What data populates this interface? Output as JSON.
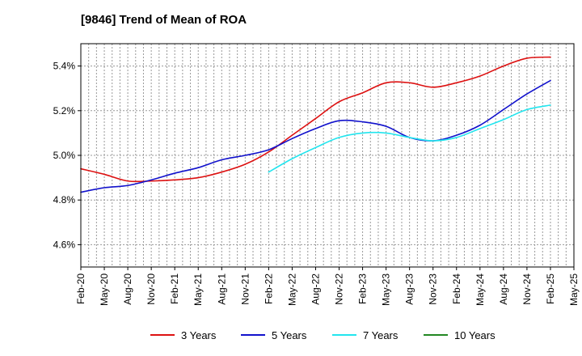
{
  "chart_data": {
    "type": "line",
    "title": "[9846]  Trend of Mean of ROA",
    "xlabel": "",
    "ylabel": "",
    "ylim": [
      4.5,
      5.5
    ],
    "yticks": [
      {
        "value": 4.6,
        "label": "4.6%"
      },
      {
        "value": 4.8,
        "label": "4.8%"
      },
      {
        "value": 5.0,
        "label": "5.0%"
      },
      {
        "value": 5.2,
        "label": "5.2%"
      },
      {
        "value": 5.4,
        "label": "5.4%"
      }
    ],
    "xticks": [
      "Feb-20",
      "May-20",
      "Aug-20",
      "Nov-20",
      "Feb-21",
      "May-21",
      "Aug-21",
      "Nov-21",
      "Feb-22",
      "May-22",
      "Aug-22",
      "Nov-22",
      "Feb-23",
      "May-23",
      "Aug-23",
      "Nov-23",
      "Feb-24",
      "May-24",
      "Aug-24",
      "Nov-24",
      "Feb-25",
      "May-25"
    ],
    "x_start": "Feb-20",
    "grid": true,
    "legend_position": "bottom",
    "series": [
      {
        "name": "3 Years",
        "color": "#dd1111",
        "start_quarter": 0,
        "values": [
          4.94,
          4.915,
          4.885,
          4.885,
          4.89,
          4.9,
          4.925,
          4.96,
          5.015,
          5.09,
          5.165,
          5.24,
          5.28,
          5.325,
          5.325,
          5.305,
          5.325,
          5.355,
          5.4,
          5.435,
          5.44
        ]
      },
      {
        "name": "5 Years",
        "color": "#1111cc",
        "start_quarter": 0,
        "values": [
          4.835,
          4.855,
          4.865,
          4.89,
          4.92,
          4.945,
          4.98,
          5.0,
          5.025,
          5.075,
          5.12,
          5.155,
          5.15,
          5.13,
          5.08,
          5.065,
          5.09,
          5.135,
          5.205,
          5.275,
          5.335
        ]
      },
      {
        "name": "7 Years",
        "color": "#22e5ee",
        "start_quarter": 8,
        "values": [
          4.925,
          4.985,
          5.035,
          5.08,
          5.1,
          5.1,
          5.08,
          5.065,
          5.08,
          5.12,
          5.16,
          5.205,
          5.225
        ]
      },
      {
        "name": "10 Years",
        "color": "#228822",
        "start_quarter": 0,
        "values": []
      }
    ]
  }
}
